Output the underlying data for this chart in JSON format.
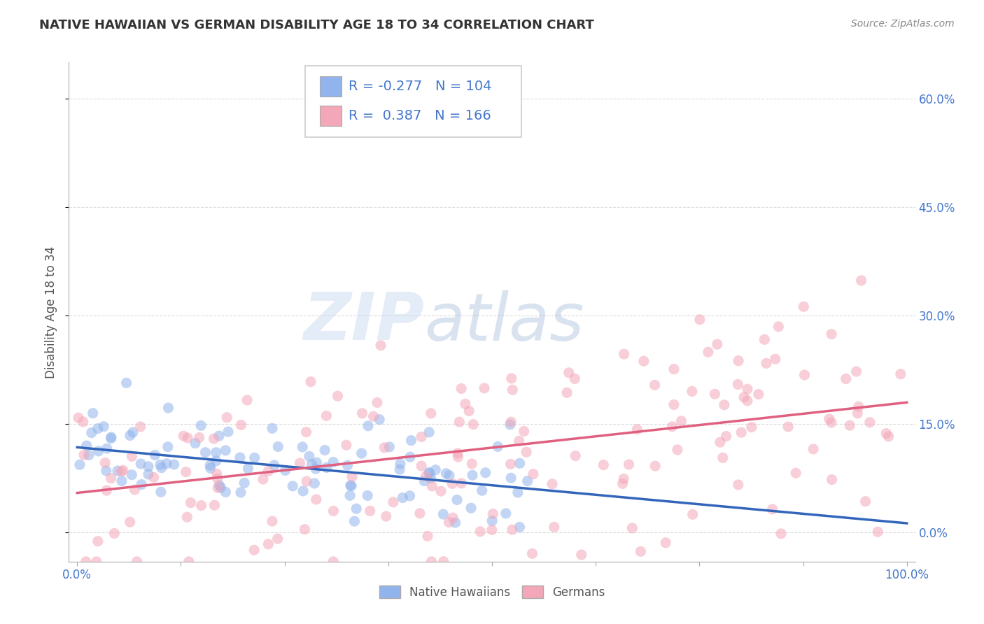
{
  "title": "NATIVE HAWAIIAN VS GERMAN DISABILITY AGE 18 TO 34 CORRELATION CHART",
  "source_text": "Source: ZipAtlas.com",
  "ylabel": "Disability Age 18 to 34",
  "xlim": [
    -0.01,
    1.01
  ],
  "ylim": [
    -0.04,
    0.65
  ],
  "yticks": [
    0.0,
    0.15,
    0.3,
    0.45,
    0.6
  ],
  "ytick_labels": [
    "0.0%",
    "15.0%",
    "30.0%",
    "45.0%",
    "60.0%"
  ],
  "xticks": [
    0.0,
    0.125,
    0.25,
    0.375,
    0.5,
    0.625,
    0.75,
    0.875,
    1.0
  ],
  "xtick_labels": [
    "0.0%",
    "",
    "",
    "",
    "",
    "",
    "",
    "",
    "100.0%"
  ],
  "blue_color": "#92B4EC",
  "pink_color": "#F4A7B9",
  "blue_line_color": "#3366BB",
  "pink_line_color": "#E06080",
  "tick_label_color": "#4477CC",
  "r_blue": -0.277,
  "n_blue": 104,
  "r_pink": 0.387,
  "n_pink": 166,
  "legend_label_blue": "Native Hawaiians",
  "legend_label_pink": "Germans",
  "blue_intercept": 0.118,
  "blue_slope": -0.105,
  "pink_intercept": 0.055,
  "pink_slope": 0.125,
  "background_color": "#ffffff",
  "grid_color": "#cccccc",
  "title_color": "#333333",
  "axis_label_color": "#555555",
  "seed_blue": 42,
  "seed_pink": 7,
  "scatter_size": 120,
  "scatter_alpha": 0.55
}
